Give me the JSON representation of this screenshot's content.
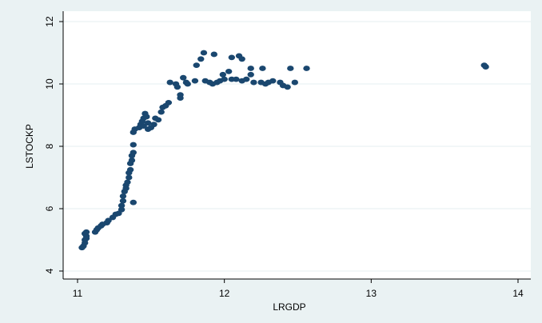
{
  "chart_data": {
    "type": "scatter",
    "title": "",
    "xlabel": "LRGDP",
    "ylabel": "LSTOCKP",
    "xlim": [
      11,
      14
    ],
    "ylim": [
      4,
      12
    ],
    "xticks": [
      11,
      12,
      13,
      14
    ],
    "yticks": [
      4,
      6,
      8,
      10,
      12
    ],
    "grid": "horizontal",
    "legend": "none",
    "colors": {
      "outer_background": "#eaf2f3",
      "plot_background": "#ffffff",
      "marker": "#1a476f",
      "gridline": "#eaf2f3"
    },
    "points": [
      [
        11.03,
        4.75
      ],
      [
        11.04,
        4.8
      ],
      [
        11.05,
        4.9
      ],
      [
        11.05,
        5.0
      ],
      [
        11.06,
        5.05
      ],
      [
        11.06,
        5.12
      ],
      [
        11.05,
        5.2
      ],
      [
        11.06,
        5.25
      ],
      [
        11.12,
        5.25
      ],
      [
        11.13,
        5.32
      ],
      [
        11.14,
        5.38
      ],
      [
        11.16,
        5.45
      ],
      [
        11.17,
        5.5
      ],
      [
        11.2,
        5.55
      ],
      [
        11.21,
        5.62
      ],
      [
        11.24,
        5.72
      ],
      [
        11.26,
        5.82
      ],
      [
        11.28,
        5.85
      ],
      [
        11.3,
        5.97
      ],
      [
        11.3,
        6.1
      ],
      [
        11.31,
        6.25
      ],
      [
        11.31,
        6.4
      ],
      [
        11.32,
        6.55
      ],
      [
        11.33,
        6.65
      ],
      [
        11.33,
        6.75
      ],
      [
        11.34,
        6.85
      ],
      [
        11.35,
        7.0
      ],
      [
        11.35,
        7.15
      ],
      [
        11.36,
        7.25
      ],
      [
        11.36,
        7.45
      ],
      [
        11.37,
        7.55
      ],
      [
        11.37,
        7.7
      ],
      [
        11.38,
        7.8
      ],
      [
        11.38,
        8.05
      ],
      [
        11.38,
        6.2
      ],
      [
        11.38,
        8.45
      ],
      [
        11.39,
        8.55
      ],
      [
        11.42,
        8.6
      ],
      [
        11.43,
        8.7
      ],
      [
        11.44,
        8.8
      ],
      [
        11.45,
        8.65
      ],
      [
        11.45,
        8.9
      ],
      [
        11.46,
        9.05
      ],
      [
        11.47,
        8.95
      ],
      [
        11.48,
        8.75
      ],
      [
        11.48,
        8.55
      ],
      [
        11.5,
        8.6
      ],
      [
        11.52,
        8.7
      ],
      [
        11.53,
        8.9
      ],
      [
        11.55,
        8.85
      ],
      [
        11.57,
        9.1
      ],
      [
        11.58,
        9.25
      ],
      [
        11.6,
        9.3
      ],
      [
        11.62,
        9.4
      ],
      [
        11.63,
        10.05
      ],
      [
        11.67,
        10.0
      ],
      [
        11.68,
        9.9
      ],
      [
        11.7,
        9.55
      ],
      [
        11.7,
        9.65
      ],
      [
        11.72,
        10.2
      ],
      [
        11.74,
        10.05
      ],
      [
        11.75,
        10.0
      ],
      [
        11.8,
        10.1
      ],
      [
        11.81,
        10.6
      ],
      [
        11.84,
        10.8
      ],
      [
        11.86,
        11.0
      ],
      [
        11.87,
        10.1
      ],
      [
        11.9,
        10.05
      ],
      [
        11.93,
        10.95
      ],
      [
        11.92,
        10.0
      ],
      [
        11.95,
        10.05
      ],
      [
        11.97,
        10.1
      ],
      [
        11.99,
        10.3
      ],
      [
        12.0,
        10.15
      ],
      [
        12.03,
        10.4
      ],
      [
        12.05,
        10.85
      ],
      [
        12.05,
        10.15
      ],
      [
        12.08,
        10.15
      ],
      [
        12.1,
        10.9
      ],
      [
        12.12,
        10.8
      ],
      [
        12.12,
        10.1
      ],
      [
        12.15,
        10.15
      ],
      [
        12.18,
        10.5
      ],
      [
        12.18,
        10.3
      ],
      [
        12.2,
        10.05
      ],
      [
        12.25,
        10.05
      ],
      [
        12.26,
        10.5
      ],
      [
        12.28,
        10.0
      ],
      [
        12.3,
        10.05
      ],
      [
        12.33,
        10.1
      ],
      [
        12.38,
        10.05
      ],
      [
        12.4,
        9.95
      ],
      [
        12.43,
        9.9
      ],
      [
        12.45,
        10.5
      ],
      [
        12.48,
        10.05
      ],
      [
        12.56,
        10.5
      ],
      [
        13.77,
        10.6
      ],
      [
        13.78,
        10.55
      ]
    ]
  }
}
